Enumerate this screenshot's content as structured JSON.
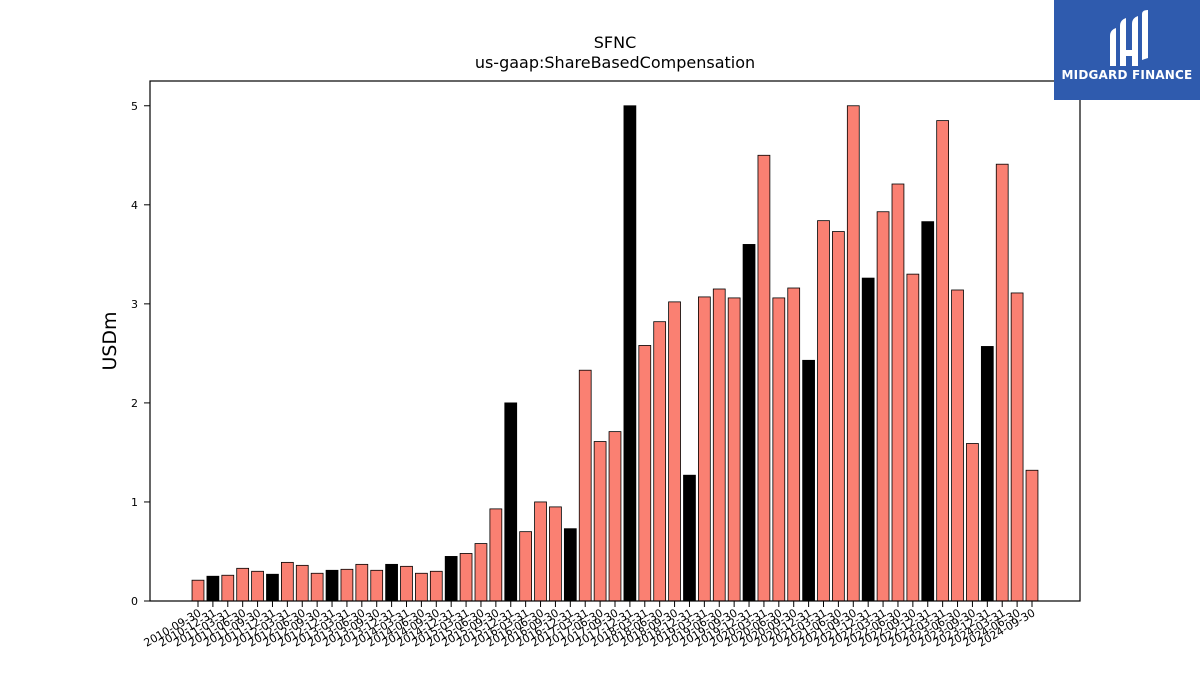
{
  "brand": {
    "name": "MIDGARD FINANCE",
    "bg_color": "#2f5bae"
  },
  "chart_data": {
    "type": "bar",
    "title": "SFNC",
    "subtitle": "us-gaap:ShareBasedCompensation",
    "ylabel": "USDm",
    "xlabel": "",
    "ylim": [
      0,
      5.25
    ],
    "yticks": [
      0,
      1,
      2,
      3,
      4,
      5
    ],
    "colors": {
      "default": "#fa8072",
      "highlight": "#000000"
    },
    "categories": [
      "2010-09-30",
      "2010-12-31",
      "2011-03-31",
      "2011-06-30",
      "2011-09-30",
      "2011-12-31",
      "2012-03-31",
      "2012-06-30",
      "2012-09-30",
      "2012-12-31",
      "2013-03-31",
      "2013-06-30",
      "2013-09-30",
      "2013-12-31",
      "2014-03-31",
      "2014-06-30",
      "2014-09-30",
      "2014-12-31",
      "2015-03-31",
      "2015-06-30",
      "2015-09-30",
      "2015-12-31",
      "2016-03-31",
      "2016-06-30",
      "2016-09-30",
      "2016-12-31",
      "2017-03-31",
      "2017-06-30",
      "2017-09-30",
      "2017-12-31",
      "2018-03-31",
      "2018-06-30",
      "2018-09-30",
      "2018-12-31",
      "2019-03-31",
      "2019-06-30",
      "2019-09-30",
      "2019-12-31",
      "2020-03-31",
      "2020-06-30",
      "2020-09-30",
      "2020-12-31",
      "2021-03-31",
      "2021-06-30",
      "2021-09-30",
      "2021-12-31",
      "2022-03-31",
      "2022-06-30",
      "2022-09-30",
      "2022-12-31",
      "2023-03-31",
      "2023-06-30",
      "2023-09-30",
      "2023-12-31",
      "2024-03-31",
      "2024-06-30",
      "2024-09-30"
    ],
    "values": [
      0.21,
      0.25,
      0.26,
      0.33,
      0.3,
      0.27,
      0.39,
      0.36,
      0.28,
      0.31,
      0.32,
      0.37,
      0.31,
      0.37,
      0.35,
      0.28,
      0.3,
      0.45,
      0.48,
      0.58,
      0.93,
      2.0,
      0.7,
      1.0,
      0.95,
      0.73,
      2.33,
      1.61,
      1.71,
      5.0,
      2.58,
      2.82,
      3.02,
      1.27,
      3.07,
      3.15,
      3.06,
      3.6,
      4.5,
      3.06,
      3.16,
      2.43,
      3.84,
      3.73,
      5.0,
      3.26,
      3.93,
      4.21,
      3.3,
      3.83,
      4.85,
      3.14,
      1.59,
      2.57,
      4.41,
      3.11,
      1.32
    ],
    "highlight": [
      false,
      true,
      false,
      false,
      false,
      true,
      false,
      false,
      false,
      true,
      false,
      false,
      false,
      true,
      false,
      false,
      false,
      true,
      false,
      false,
      false,
      true,
      false,
      false,
      false,
      true,
      false,
      false,
      false,
      true,
      false,
      false,
      false,
      true,
      false,
      false,
      false,
      true,
      false,
      false,
      false,
      true,
      false,
      false,
      false,
      true,
      false,
      false,
      false,
      true,
      false,
      false,
      false,
      true,
      false,
      false,
      false
    ],
    "grid": false
  }
}
